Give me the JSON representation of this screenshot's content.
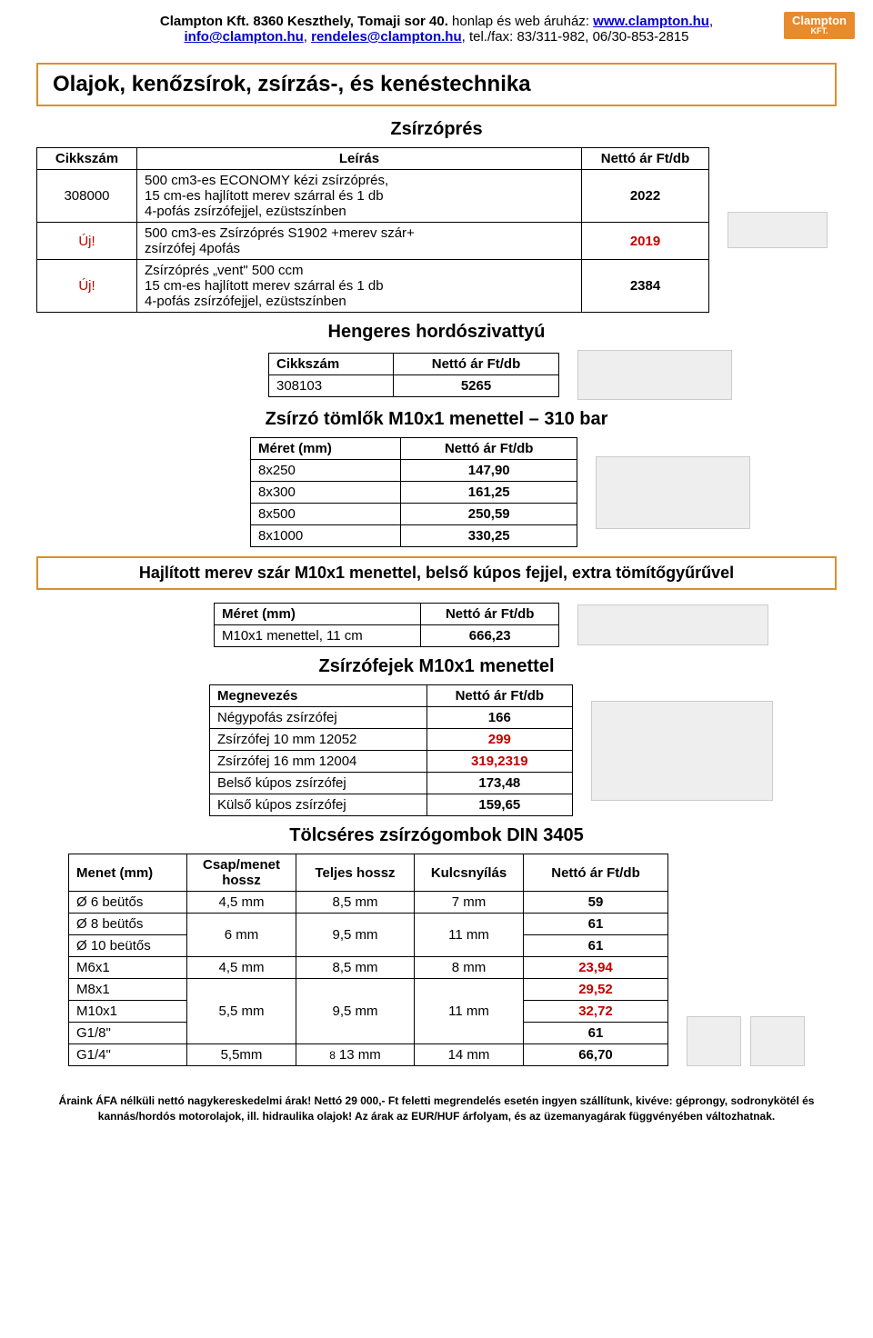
{
  "header": {
    "company_bold": "Clampton Kft. 8360 Keszthely, Tomaji sor 40.",
    "label_web": " honlap és web áruház: ",
    "link_web": "www.clampton.hu",
    "email1": "info@clampton.hu",
    "email2": "rendeles@clampton.hu",
    "tel": ", tel./fax: 83/311-982, 06/30-853-2815",
    "logo": "Clampton",
    "logo_sub": "KFT."
  },
  "main_title": "Olajok, kenőzsírok, zsírzás-, és kenéstechnika",
  "zsirzopres": {
    "title": "Zsírzóprés",
    "header": {
      "c1": "Cikkszám",
      "c2": "Leírás",
      "c3": "Nettó ár Ft/db"
    },
    "rows": [
      {
        "c1": "308000",
        "c2": "500 cm3-es ECONOMY kézi zsírzóprés,\n15 cm-es hajlított merev szárral és 1 db\n4-pofás zsírzófejjel, ezüstszínben",
        "c3": "2022",
        "red": false
      },
      {
        "c1": "Új!",
        "c2": "500 cm3-es  Zsírzóprés S1902 +merev szár+\nzsírzófej 4pofás",
        "c3": "2019",
        "red": true
      },
      {
        "c1": "Új!",
        "c2": "Zsírzóprés „vent\" 500 ccm\n15 cm-es hajlított merev szárral és 1 db\n4-pofás zsírzófejjel, ezüstszínben",
        "c3": "2384",
        "red": false
      }
    ]
  },
  "hordoszivattyu": {
    "title": "Hengeres hordószivattyú",
    "header": {
      "c1": "Cikkszám",
      "c2": "Nettó ár Ft/db"
    },
    "rows": [
      {
        "c1": "308103",
        "c2": "5265"
      }
    ]
  },
  "tomlok": {
    "title": "Zsírzó tömlők M10x1 menettel – 310 bar",
    "header": {
      "c1": "Méret (mm)",
      "c2": "Nettó ár Ft/db"
    },
    "rows": [
      {
        "c1": "8x250",
        "c2": "147,90"
      },
      {
        "c1": "8x300",
        "c2": "161,25"
      },
      {
        "c1": "8x500",
        "c2": "250,59"
      },
      {
        "c1": "8x1000",
        "c2": "330,25"
      }
    ]
  },
  "hajlitott": {
    "title": "Hajlított merev szár M10x1 menettel, belső kúpos fejjel, extra tömítőgyűrűvel",
    "header": {
      "c1": "Méret (mm)",
      "c2": "Nettó ár Ft/db"
    },
    "rows": [
      {
        "c1": "M10x1 menettel, 11 cm",
        "c2": "666,23"
      }
    ]
  },
  "zsirzofejek": {
    "title": "Zsírzófejek M10x1 menettel",
    "header": {
      "c1": "Megnevezés",
      "c2": "Nettó ár Ft/db"
    },
    "rows": [
      {
        "c1": "Négypofás zsírzófej",
        "c2": "166",
        "red": false
      },
      {
        "c1": "Zsírzófej 10 mm 12052",
        "c2": "299",
        "red": true
      },
      {
        "c1": "Zsírzófej 16 mm 12004",
        "c2": "319,2319",
        "red": true
      },
      {
        "c1": "Belső kúpos zsírzófej",
        "c2": "173,48",
        "red": false
      },
      {
        "c1": "Külső kúpos zsírzófej",
        "c2": "159,65",
        "red": false
      }
    ]
  },
  "tolcseres": {
    "title": "Tölcséres zsírzógombok DIN 3405",
    "header": {
      "c1": "Menet (mm)",
      "c2": "Csap/menet hossz",
      "c3": "Teljes hossz",
      "c4": "Kulcsnyílás",
      "c5": "Nettó ár Ft/db"
    },
    "rows": [
      {
        "c1": "Ø 6 beütős",
        "c2": "4,5 mm",
        "c3": "8,5 mm",
        "c4": "7 mm",
        "c5": "59",
        "red": false
      },
      {
        "c1": "Ø 8 beütős",
        "c2_rowspan_start": true,
        "c2": "6 mm",
        "c3": "9,5 mm",
        "c4": "11 mm",
        "c5": "61",
        "red": false
      },
      {
        "c1": "Ø 10 beütős",
        "skip234": true,
        "c5": "61",
        "red": false
      },
      {
        "c1": "M6x1",
        "c2": "4,5 mm",
        "c3": "8,5 mm",
        "c4": "8 mm",
        "c5": "23,94",
        "red": true
      },
      {
        "c1": "M8x1",
        "c2_rowspan_start": true,
        "rowspan": 3,
        "c2": "5,5 mm",
        "c3": "9,5 mm",
        "c4": "11 mm",
        "c5": "29,52",
        "red": true
      },
      {
        "c1": "M10x1",
        "skip234": true,
        "c5": "32,72",
        "red": true
      },
      {
        "c1": "G1/8\"",
        "skip234": true,
        "c5": "61",
        "red": false
      },
      {
        "c1": "G1/4\"",
        "c2": "5,5mm",
        "c3": "13 mm",
        "c4": "14 mm",
        "c5": "66,70",
        "red": false,
        "c3_pre": "8"
      }
    ]
  },
  "footer": {
    "l1": "Áraink ÁFA nélküli nettó nagykereskedelmi árak! Nettó 29 000,- Ft feletti megrendelés esetén ingyen szállítunk, kivéve: géprongy, sodronykötél és",
    "l2": "kannás/hordós motorolajok, ill. hidraulika olajok! Az árak az EUR/HUF árfolyam, és az üzemanyagárak függvényében változhatnak."
  }
}
